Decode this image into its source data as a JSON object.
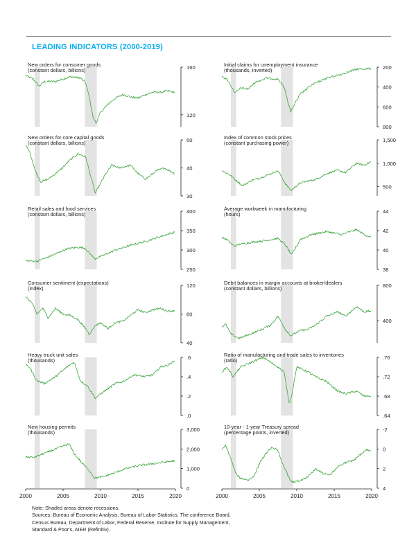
{
  "title": "LEADING INDICATORS (2000-2019)",
  "x_ticks": [
    "2000",
    "2005",
    "2010",
    "2015",
    "2020"
  ],
  "notes": {
    "line1": "Note: Shaded areas denote recessions.",
    "line2": "Sources: Bureau of Economic Analysis, Bureau of Labor Statistics, The conference Board,",
    "line3": "Census Bureau, Department of Labor, Federal Reserve, Institute for Supply Management,",
    "line4": "Standard & Poor's, AIER (Refinitiv)."
  },
  "colors": {
    "line": "#3aa53a",
    "recession": "#e3e3e3",
    "title": "#00aeef",
    "axis": "#222222"
  },
  "chart_data": [
    {
      "type": "line",
      "title": "New orders for consumer goods",
      "subtitle": "(constant dollars, billions)",
      "ylim": [
        110,
        160
      ],
      "y_ticks": [
        "160",
        "120"
      ],
      "y_tick_values": [
        160,
        120
      ],
      "inverted": false,
      "recessions": [
        [
          2001.2,
          2001.9
        ],
        [
          2007.9,
          2009.5
        ]
      ],
      "series": [
        {
          "x": [
            2000,
            2001,
            2001.8,
            2002.5,
            2004,
            2006,
            2007.3,
            2008,
            2008.5,
            2009,
            2009.4,
            2010,
            2011,
            2012,
            2013,
            2014,
            2015,
            2016,
            2017,
            2018,
            2019,
            2019.9
          ],
          "y": [
            153,
            150,
            144,
            148,
            148,
            152,
            151,
            147,
            135,
            118,
            113,
            122,
            129,
            134,
            137,
            135,
            134,
            137,
            139,
            139,
            140,
            139
          ]
        }
      ]
    },
    {
      "type": "line",
      "title": "Initial claims for unemployment insurance",
      "subtitle": "(thousands, inverted)",
      "ylim": [
        800,
        200
      ],
      "y_ticks": [
        "200",
        "400",
        "600",
        "800"
      ],
      "y_tick_values": [
        200,
        400,
        600,
        800
      ],
      "inverted": true,
      "recessions": [
        [
          2001.2,
          2001.9
        ],
        [
          2007.9,
          2009.5
        ]
      ],
      "series": [
        {
          "x": [
            2000,
            2000.8,
            2001.3,
            2001.8,
            2002.5,
            2003.5,
            2004.5,
            2006,
            2007.5,
            2008.3,
            2009.2,
            2009.5,
            2010.5,
            2012,
            2014,
            2016,
            2018,
            2019.9
          ],
          "y": [
            290,
            330,
            400,
            460,
            410,
            420,
            350,
            310,
            320,
            400,
            650,
            600,
            470,
            380,
            310,
            270,
            220,
            215
          ]
        }
      ]
    },
    {
      "type": "line",
      "title": "New orders for core capital goods",
      "subtitle": "(constant dollars, billions)",
      "ylim": [
        30,
        50
      ],
      "y_ticks": [
        "50",
        "40",
        "30"
      ],
      "y_tick_values": [
        50,
        40,
        30
      ],
      "inverted": false,
      "recessions": [
        [
          2001.2,
          2001.9
        ],
        [
          2007.9,
          2009.5
        ]
      ],
      "series": [
        {
          "x": [
            2000,
            2000.5,
            2001.3,
            2002,
            2003,
            2004.5,
            2006,
            2007,
            2008,
            2008.6,
            2009.3,
            2010.5,
            2011.5,
            2012.5,
            2014,
            2015,
            2016,
            2017.5,
            2018.5,
            2019.9
          ],
          "y": [
            48,
            46,
            39,
            35,
            36,
            39,
            43,
            45,
            44,
            38,
            31,
            37,
            41,
            40,
            41,
            38,
            36,
            39,
            40,
            38
          ]
        }
      ]
    },
    {
      "type": "line",
      "title": "Index of common stock prices",
      "subtitle": "(constant purchasing power)",
      "ylim": [
        300,
        1500
      ],
      "y_ticks": [
        "1,500",
        "1,000",
        "500"
      ],
      "y_tick_values": [
        1500,
        1000,
        500
      ],
      "inverted": false,
      "recessions": [
        [
          2001.2,
          2001.9
        ],
        [
          2007.9,
          2009.5
        ]
      ],
      "series": [
        {
          "x": [
            2000,
            2001,
            2002,
            2002.8,
            2004,
            2005,
            2006,
            2007.5,
            2008.5,
            2009.2,
            2010.5,
            2011.5,
            2012.5,
            2014,
            2015.5,
            2016.5,
            2018,
            2019,
            2019.9
          ],
          "y": [
            840,
            760,
            620,
            520,
            640,
            680,
            740,
            840,
            560,
            420,
            580,
            620,
            650,
            780,
            850,
            800,
            1000,
            960,
            1030
          ]
        }
      ]
    },
    {
      "type": "line",
      "title": "Retail sales and food services",
      "subtitle": "(constant dollars, billions)",
      "ylim": [
        250,
        400
      ],
      "y_ticks": [
        "400",
        "350",
        "300",
        "250"
      ],
      "y_tick_values": [
        400,
        350,
        300,
        250
      ],
      "inverted": false,
      "recessions": [
        [
          2001.2,
          2001.9
        ],
        [
          2007.9,
          2009.5
        ]
      ],
      "series": [
        {
          "x": [
            2000,
            2001.5,
            2002.5,
            2004,
            2005.5,
            2007,
            2007.9,
            2008.6,
            2009.2,
            2010.5,
            2012,
            2014,
            2016,
            2018,
            2019.9
          ],
          "y": [
            272,
            271,
            278,
            290,
            303,
            307,
            305,
            290,
            277,
            287,
            300,
            312,
            322,
            335,
            346
          ]
        }
      ]
    },
    {
      "type": "line",
      "title": "Average workweek in manufacturing",
      "subtitle": "(hours)",
      "ylim": [
        38,
        44
      ],
      "y_ticks": [
        "44",
        "42",
        "40",
        "38"
      ],
      "y_tick_values": [
        44,
        42,
        40,
        38
      ],
      "inverted": false,
      "recessions": [
        [
          2001.2,
          2001.9
        ],
        [
          2007.9,
          2009.5
        ]
      ],
      "series": [
        {
          "x": [
            2000,
            2000.8,
            2001.6,
            2002.5,
            2004,
            2006,
            2007.5,
            2008.5,
            2009.3,
            2010.5,
            2012,
            2014,
            2016,
            2018,
            2019,
            2019.9
          ],
          "y": [
            41.3,
            41.0,
            40.4,
            40.6,
            40.8,
            41.0,
            41.2,
            40.5,
            39.5,
            41.1,
            41.6,
            41.9,
            41.6,
            42.1,
            41.6,
            41.3
          ]
        }
      ]
    },
    {
      "type": "line",
      "title": "Consumer sentiment (expectations)",
      "subtitle": "(index)",
      "ylim": [
        40,
        120
      ],
      "y_ticks": [
        "120",
        "80",
        "40"
      ],
      "y_tick_values": [
        120,
        80,
        40
      ],
      "inverted": false,
      "recessions": [
        [
          2001.2,
          2001.9
        ],
        [
          2007.9,
          2009.5
        ]
      ],
      "series": [
        {
          "x": [
            2000,
            2000.8,
            2001.5,
            2002.3,
            2003,
            2004,
            2005,
            2006,
            2007,
            2008,
            2008.5,
            2009.3,
            2010,
            2011,
            2012,
            2013,
            2014,
            2015,
            2016,
            2017,
            2018,
            2019,
            2019.9
          ],
          "y": [
            104,
            96,
            80,
            88,
            75,
            88,
            80,
            78,
            72,
            60,
            52,
            64,
            68,
            60,
            68,
            70,
            78,
            86,
            82,
            86,
            88,
            84,
            85
          ]
        }
      ]
    },
    {
      "type": "line",
      "title": "Debit balances in margin accounts at broker/dealers",
      "subtitle": "(constant dollars, billions)",
      "ylim": [
        150,
        800
      ],
      "y_ticks": [
        "800",
        "400"
      ],
      "y_tick_values": [
        800,
        400
      ],
      "inverted": false,
      "recessions": [
        [
          2001.2,
          2001.9
        ],
        [
          2007.9,
          2009.5
        ]
      ],
      "series": [
        {
          "x": [
            2000,
            2000.5,
            2001.2,
            2002.3,
            2003.5,
            2005,
            2006.5,
            2007.5,
            2008.5,
            2009.2,
            2010.5,
            2011.5,
            2012.5,
            2014,
            2015.5,
            2016.5,
            2018,
            2019,
            2019.9
          ],
          "y": [
            330,
            360,
            250,
            200,
            240,
            290,
            350,
            450,
            300,
            230,
            290,
            300,
            350,
            450,
            500,
            450,
            560,
            500,
            510
          ]
        }
      ]
    },
    {
      "type": "line",
      "title": "Heavy truck unit sales",
      "subtitle": "(thousands)",
      "ylim": [
        0,
        0.6
      ],
      "y_ticks": [
        ".6",
        ".4",
        ".2",
        ".0"
      ],
      "y_tick_values": [
        0.6,
        0.4,
        0.2,
        0.0
      ],
      "inverted": false,
      "recessions": [
        [
          2001.2,
          2001.9
        ],
        [
          2007.9,
          2009.5
        ]
      ],
      "series": [
        {
          "x": [
            2000,
            2000.5,
            2001.5,
            2002.5,
            2004,
            2005.5,
            2006.5,
            2007.3,
            2008.3,
            2009.3,
            2010.5,
            2012,
            2013,
            2014.5,
            2016,
            2017,
            2018,
            2019,
            2019.9
          ],
          "y": [
            0.52,
            0.5,
            0.36,
            0.33,
            0.4,
            0.5,
            0.55,
            0.36,
            0.3,
            0.18,
            0.25,
            0.33,
            0.35,
            0.42,
            0.4,
            0.42,
            0.5,
            0.52,
            0.56
          ]
        }
      ]
    },
    {
      "type": "line",
      "title": "Ratio of manufacturing and trade sales to inventories",
      "subtitle": "(ratio)",
      "ylim": [
        0.64,
        0.76
      ],
      "y_ticks": [
        ".76",
        ".72",
        ".68",
        ".64"
      ],
      "y_tick_values": [
        0.76,
        0.72,
        0.68,
        0.64
      ],
      "inverted": false,
      "recessions": [
        [
          2001.2,
          2001.9
        ],
        [
          2007.9,
          2009.5
        ]
      ],
      "series": [
        {
          "x": [
            2000,
            2000.7,
            2001.5,
            2002.5,
            2004,
            2005.5,
            2006.5,
            2007.5,
            2008.3,
            2009,
            2009.3,
            2010,
            2011.5,
            2012.5,
            2014,
            2015.5,
            2016.5,
            2018,
            2019,
            2019.9
          ],
          "y": [
            0.73,
            0.74,
            0.72,
            0.74,
            0.75,
            0.76,
            0.75,
            0.74,
            0.73,
            0.665,
            0.68,
            0.74,
            0.73,
            0.72,
            0.71,
            0.69,
            0.685,
            0.69,
            0.68,
            0.68
          ]
        }
      ]
    },
    {
      "type": "line",
      "title": "New housing permits",
      "subtitle": "(thousands)",
      "ylim": [
        0,
        3000
      ],
      "y_ticks": [
        "3,000",
        "2,000",
        "1,000",
        "0"
      ],
      "y_tick_values": [
        3000,
        2000,
        1000,
        0
      ],
      "inverted": false,
      "recessions": [
        [
          2001.2,
          2001.9
        ],
        [
          2007.9,
          2009.5
        ]
      ],
      "series": [
        {
          "x": [
            2000,
            2001,
            2002,
            2003,
            2004,
            2005,
            2005.8,
            2006.5,
            2007.5,
            2008.5,
            2009.2,
            2010.5,
            2012,
            2013,
            2014,
            2015,
            2016,
            2017,
            2018,
            2019,
            2019.9
          ],
          "y": [
            1600,
            1560,
            1700,
            1850,
            2000,
            2150,
            2250,
            1750,
            1300,
            900,
            520,
            600,
            800,
            950,
            1050,
            1150,
            1200,
            1250,
            1300,
            1350,
            1400
          ]
        }
      ]
    },
    {
      "type": "line",
      "title": "10-year - 1-year Treasury spread",
      "subtitle": "(percentage points, inverted)",
      "ylim": [
        4,
        -2
      ],
      "y_ticks": [
        "-2",
        "0",
        "2",
        "4"
      ],
      "y_tick_values": [
        -2,
        0,
        2,
        4
      ],
      "inverted": true,
      "recessions": [
        [
          2001.2,
          2001.9
        ],
        [
          2007.9,
          2009.5
        ]
      ],
      "series": [
        {
          "x": [
            2000,
            2000.5,
            2001.2,
            2001.9,
            2002.5,
            2003.5,
            2004.3,
            2005,
            2006,
            2006.8,
            2007.5,
            2008.3,
            2009,
            2009.5,
            2010.5,
            2011.5,
            2012.5,
            2013.5,
            2014.5,
            2015.5,
            2016.5,
            2017.5,
            2018.5,
            2019.3,
            2019.9
          ],
          "y": [
            0,
            -0.4,
            1.0,
            2.5,
            3.0,
            3.2,
            2.8,
            1.5,
            0.3,
            -0.2,
            0.2,
            1.8,
            3.0,
            3.4,
            3.2,
            2.8,
            2.0,
            2.5,
            2.6,
            1.8,
            1.4,
            1.2,
            0.6,
            0.1,
            0.2
          ]
        }
      ]
    }
  ]
}
